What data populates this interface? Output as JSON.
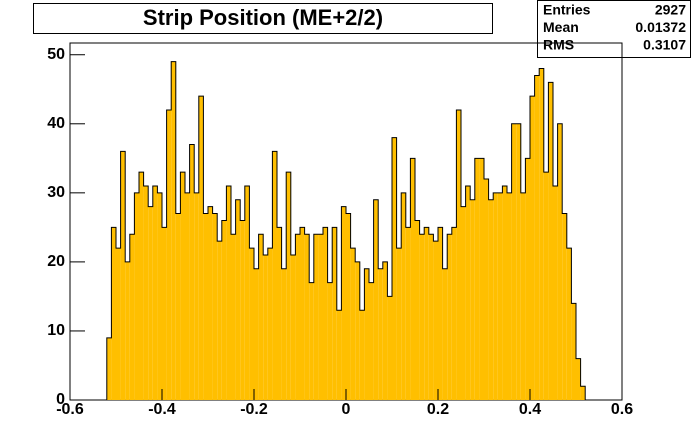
{
  "chart_data": {
    "type": "histogram",
    "title": "Strip Position (ME+2/2)",
    "color": "#ffbf00",
    "stats": {
      "labels": [
        "Entries",
        "Mean",
        "RMS"
      ],
      "values": [
        2927,
        0.01372,
        0.3107
      ]
    },
    "xlim": [
      -0.6,
      0.6
    ],
    "xticks": [
      -0.6,
      -0.4,
      -0.2,
      0,
      0.2,
      0.4,
      0.6
    ],
    "ylim": [
      0,
      51.7
    ],
    "yticks": [
      0,
      10,
      20,
      30,
      40,
      50
    ],
    "bins": [
      -0.52,
      -0.51,
      -0.5,
      -0.49,
      -0.48,
      -0.47,
      -0.46,
      -0.45,
      -0.44,
      -0.43,
      -0.42,
      -0.41,
      -0.4,
      -0.39,
      -0.38,
      -0.37,
      -0.36,
      -0.35,
      -0.34,
      -0.33,
      -0.32,
      -0.31,
      -0.3,
      -0.29,
      -0.28,
      -0.27,
      -0.26,
      -0.25,
      -0.24,
      -0.23,
      -0.22,
      -0.21,
      -0.2,
      -0.19,
      -0.18,
      -0.17,
      -0.16,
      -0.15,
      -0.14,
      -0.13,
      -0.12,
      -0.11,
      -0.1,
      -0.09,
      -0.08,
      -0.07,
      -0.06,
      -0.05,
      -0.04,
      -0.03,
      -0.02,
      -0.01,
      0,
      0.01,
      0.02,
      0.03,
      0.04,
      0.05,
      0.06,
      0.07,
      0.08,
      0.09,
      0.1,
      0.11,
      0.12,
      0.13,
      0.14,
      0.15,
      0.16,
      0.17,
      0.18,
      0.19,
      0.2,
      0.21,
      0.22,
      0.23,
      0.24,
      0.25,
      0.26,
      0.27,
      0.28,
      0.29,
      0.3,
      0.31,
      0.32,
      0.33,
      0.34,
      0.35,
      0.36,
      0.37,
      0.38,
      0.39,
      0.4,
      0.41,
      0.42,
      0.43,
      0.44,
      0.45,
      0.46,
      0.47,
      0.48,
      0.49,
      0.5,
      0.51,
      0.52
    ],
    "values": [
      9,
      25,
      22,
      36,
      20,
      24,
      30,
      33,
      31,
      28,
      31,
      30,
      25,
      42,
      49,
      27,
      33,
      30,
      37,
      30,
      44,
      27,
      28,
      27,
      23,
      26,
      31,
      24,
      29,
      26,
      31,
      22,
      19,
      24,
      21,
      22,
      36,
      25,
      19,
      33,
      21,
      24,
      25,
      24,
      17,
      24,
      24,
      25,
      17,
      25,
      13,
      28,
      27,
      22,
      20,
      13,
      19,
      17,
      29,
      19,
      20,
      15,
      38,
      22,
      30,
      25,
      35,
      26,
      24,
      25,
      24,
      23,
      25,
      19,
      24,
      25,
      42,
      28,
      31,
      29,
      35,
      35,
      32,
      29,
      30,
      30,
      31,
      30,
      40,
      40,
      30,
      35,
      44,
      47,
      48,
      33,
      46,
      31,
      40,
      27,
      22,
      14,
      6,
      2
    ]
  }
}
